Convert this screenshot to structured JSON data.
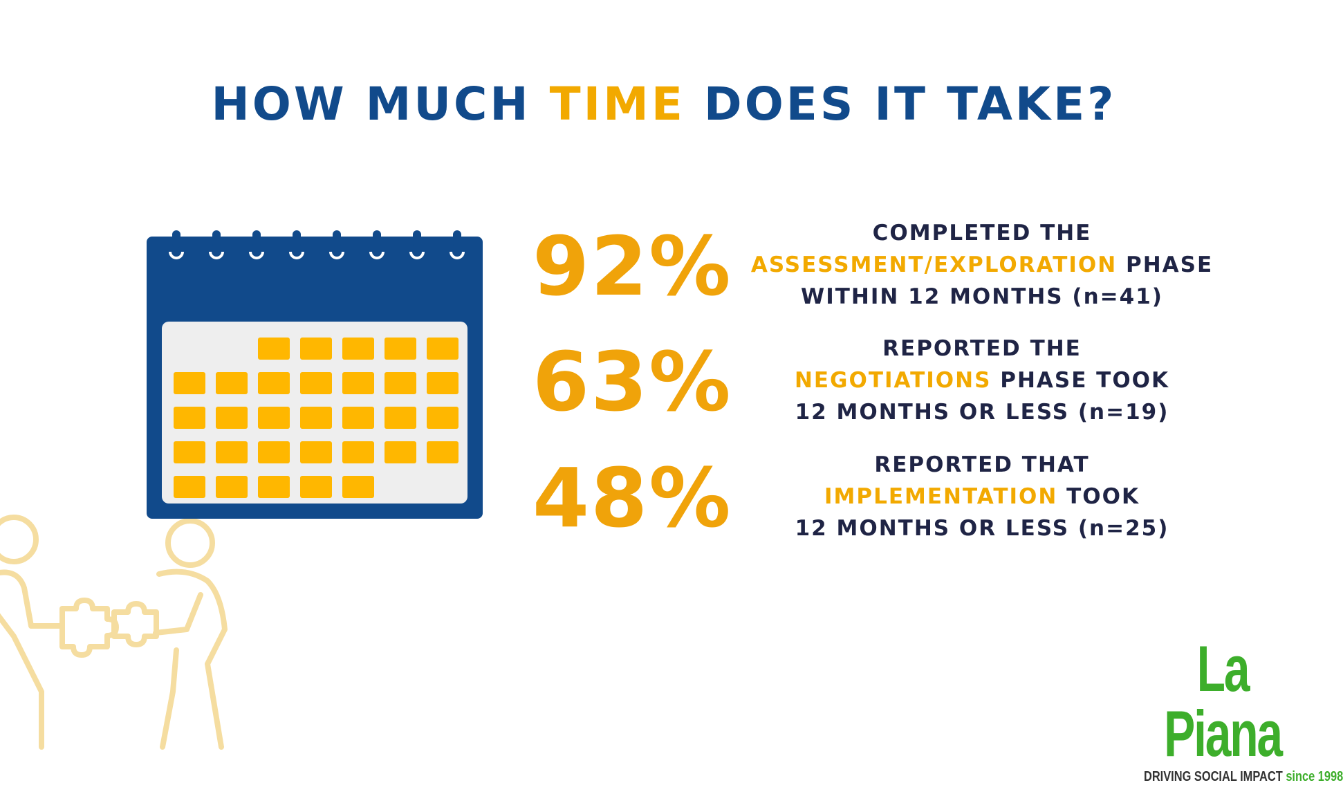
{
  "title": {
    "part1": "HOW MUCH ",
    "accent": "TIME",
    "part2": " DOES IT TAKE?"
  },
  "colors": {
    "navy": "#114a8b",
    "gold": "#f2a900",
    "ink": "#1f2445",
    "green": "#3dae2b",
    "calendar_body": "#eeeeee",
    "figure_outline": "#f5dda0"
  },
  "stats": [
    {
      "percent": "92%",
      "line1": "COMPLETED THE",
      "highlight": "ASSESSMENT/EXPLORATION",
      "after_highlight": " PHASE",
      "line3": "WITHIN 12 MONTHS (n=41)"
    },
    {
      "percent": "63%",
      "line1": "REPORTED THE",
      "highlight": "NEGOTIATIONS",
      "after_highlight": " PHASE TOOK",
      "line3": "12 MONTHS OR LESS (n=19)"
    },
    {
      "percent": "48%",
      "line1": "REPORTED THAT",
      "highlight": "IMPLEMENTATION",
      "after_highlight": " TOOK",
      "line3": "12 MONTHS OR LESS (n=25)"
    }
  ],
  "logo": {
    "brand": "La Piana",
    "tagline": "DRIVING SOCIAL IMPACT",
    "since": " since 1998"
  },
  "icons": {
    "calendar": "calendar-icon",
    "people": "people-puzzle-icon"
  }
}
